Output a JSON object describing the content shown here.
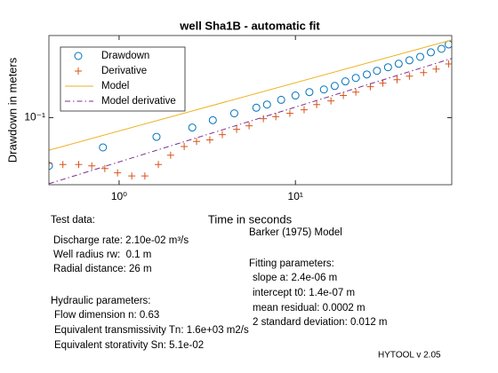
{
  "chart_data": {
    "type": "scatter",
    "title": "well Sha1B - automatic fit",
    "xlabel": "Time in seconds",
    "ylabel": "Drawdown in meters",
    "xscale": "log",
    "yscale": "log",
    "xlim": [
      0.4,
      77
    ],
    "ylim": [
      0.026,
      0.52
    ],
    "xticks": [
      {
        "value": 1,
        "label": "10⁰"
      },
      {
        "value": 10,
        "label": "10¹"
      }
    ],
    "yticks": [
      {
        "value": 0.1,
        "label": "10⁻¹"
      }
    ],
    "legend": "upper left",
    "series": [
      {
        "name": "Drawdown",
        "style": "circle",
        "color": "#0072bd",
        "x": [
          0.4,
          0.81,
          1.63,
          2.6,
          3.4,
          4.5,
          6.0,
          6.9,
          8.3,
          10,
          12,
          14.5,
          16.7,
          19.2,
          22,
          25.4,
          29,
          33.5,
          38.5,
          44.3,
          51,
          58.6,
          67.3,
          74
        ],
        "values": [
          0.038,
          0.055,
          0.068,
          0.082,
          0.095,
          0.109,
          0.122,
          0.13,
          0.143,
          0.156,
          0.167,
          0.176,
          0.189,
          0.207,
          0.222,
          0.238,
          0.256,
          0.275,
          0.295,
          0.316,
          0.339,
          0.371,
          0.398,
          0.435
        ]
      },
      {
        "name": "Derivative",
        "style": "plus",
        "color": "#d95319",
        "x": [
          0.4,
          0.48,
          0.59,
          0.7,
          0.83,
          0.98,
          1.18,
          1.4,
          1.67,
          1.96,
          2.34,
          2.75,
          3.27,
          3.85,
          4.64,
          5.46,
          6.58,
          7.74,
          9.3,
          11.2,
          13.2,
          15.9,
          18.7,
          22,
          26.6,
          31.3,
          37.7,
          44.3,
          53.3,
          62.8,
          74
        ],
        "values": [
          0.04,
          0.039,
          0.039,
          0.038,
          0.036,
          0.033,
          0.031,
          0.031,
          0.039,
          0.047,
          0.056,
          0.062,
          0.064,
          0.071,
          0.079,
          0.085,
          0.098,
          0.102,
          0.109,
          0.117,
          0.13,
          0.14,
          0.156,
          0.167,
          0.186,
          0.2,
          0.214,
          0.23,
          0.247,
          0.265,
          0.294
        ]
      },
      {
        "name": "Model",
        "style": "line",
        "color": "#edb120",
        "x": [
          0.4,
          77
        ],
        "values": [
          0.052,
          0.476
        ]
      },
      {
        "name": "Model derivative",
        "style": "dashdot",
        "color": "#7e2f8e",
        "x": [
          0.4,
          77
        ],
        "values": [
          0.0265,
          0.328
        ]
      }
    ],
    "annotations": [
      "Test data:",
      "Discharge rate: 2.10e-02 m³/s",
      "Well radius rw:  0.1 m",
      "Radial distance: 26 m",
      "Hydraulic parameters:",
      "Flow dimension n: 0.63",
      "Equivalent transmissivity Tn: 1.6e+03 m2/s",
      "Equivalent storativity Sn: 5.1e-02",
      "Barker (1975) Model",
      "Fitting parameters:",
      "slope a: 2.4e-06 m",
      "intercept t0: 1.4e-07 m",
      "mean residual: 0.0002 m",
      "2 standard deviation: 0.012 m",
      "HYTOOL v 2.05"
    ]
  }
}
